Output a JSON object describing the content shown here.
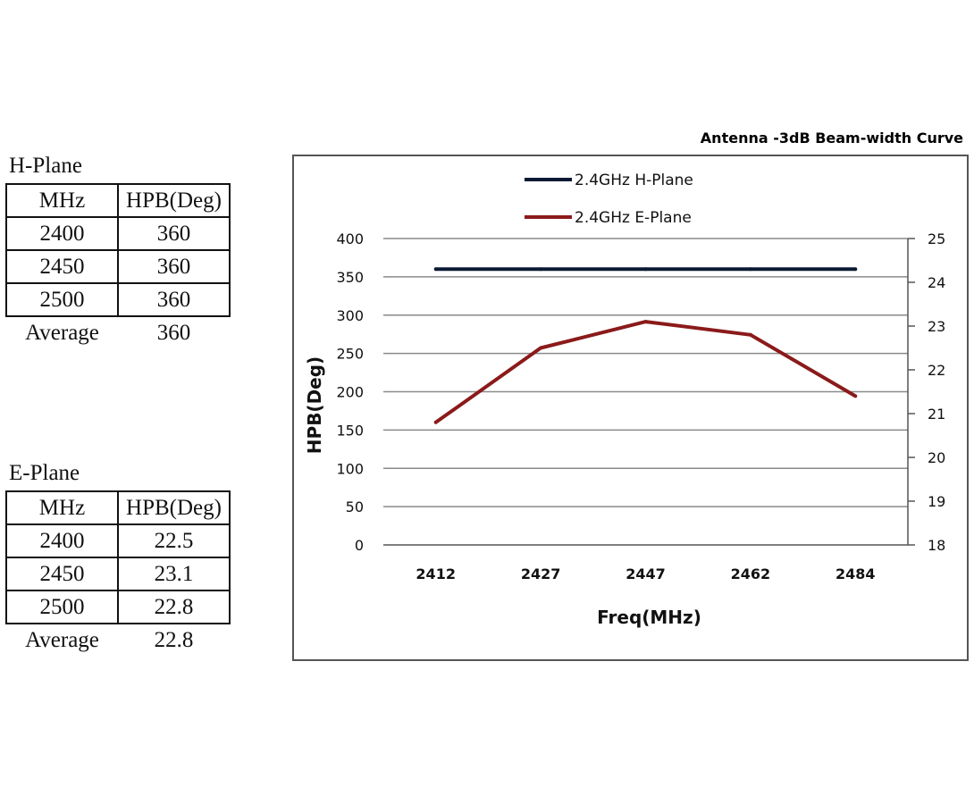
{
  "h_plane": {
    "title": "H-Plane",
    "header": [
      "MHz",
      "HPB(Deg)"
    ],
    "rows": [
      [
        "2400",
        "360"
      ],
      [
        "2450",
        "360"
      ],
      [
        "2500",
        "360"
      ]
    ],
    "average_label": "Average",
    "average_value": "360"
  },
  "e_plane": {
    "title": "E-Plane",
    "header": [
      "MHz",
      "HPB(Deg)"
    ],
    "rows": [
      [
        "2400",
        "22.5"
      ],
      [
        "2450",
        "23.1"
      ],
      [
        "2500",
        "22.8"
      ]
    ],
    "average_label": "Average",
    "average_value": "22.8"
  },
  "chart_data": {
    "type": "line",
    "title": "Antenna -3dB Beam-width Curve",
    "xlabel": "Freq(MHz)",
    "ylabel": "HPB(Deg)",
    "categories": [
      "2412",
      "2427",
      "2447",
      "2462",
      "2484"
    ],
    "ylim": [
      0,
      400
    ],
    "yticks": [
      0,
      50,
      100,
      150,
      200,
      250,
      300,
      350,
      400
    ],
    "y2lim": [
      18,
      25
    ],
    "y2ticks": [
      18,
      19,
      20,
      21,
      22,
      23,
      24,
      25
    ],
    "grid": true,
    "legend_position": "top",
    "series": [
      {
        "name": "2.4GHz H-Plane",
        "axis": "left",
        "color": "#0b1a33",
        "values": [
          360,
          360,
          360,
          360,
          360
        ]
      },
      {
        "name": "2.4GHz E-Plane",
        "axis": "right",
        "color": "#8b1a1a",
        "values": [
          20.8,
          22.5,
          23.1,
          22.8,
          21.4
        ]
      }
    ]
  }
}
